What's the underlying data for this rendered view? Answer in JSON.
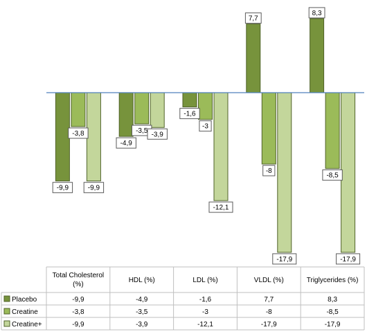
{
  "chart_data": {
    "type": "bar",
    "categories": [
      "Total Cholesterol (%)",
      "HDL (%)",
      "LDL (%)",
      "VLDL (%)",
      "Triglycerides (%)"
    ],
    "series": [
      {
        "name": "Placebo",
        "values": [
          -9.9,
          -4.9,
          -1.6,
          7.7,
          8.3
        ],
        "color": "#77933c"
      },
      {
        "name": "Creatine",
        "values": [
          -3.8,
          -3.5,
          -3,
          -8,
          -8.5
        ],
        "color": "#9bbb59"
      },
      {
        "name": "Creatine+",
        "values": [
          -9.9,
          -3.9,
          -12.1,
          -17.9,
          -17.9
        ],
        "color": "#c3d69b"
      }
    ],
    "data_labels": [
      [
        "-9,9",
        "-4,9",
        "-1,6",
        "7,7",
        "8,3"
      ],
      [
        "-3,8",
        "-3,5",
        "-3",
        "-8",
        "-8,5"
      ],
      [
        "-9,9",
        "-3,9",
        "-12,1",
        "-17,9",
        "-17,9"
      ]
    ],
    "ylim": [
      -17.9,
      8.3
    ],
    "data_table": true,
    "axis_color": "#4f81bd",
    "bar_stroke": "#4f6228"
  }
}
